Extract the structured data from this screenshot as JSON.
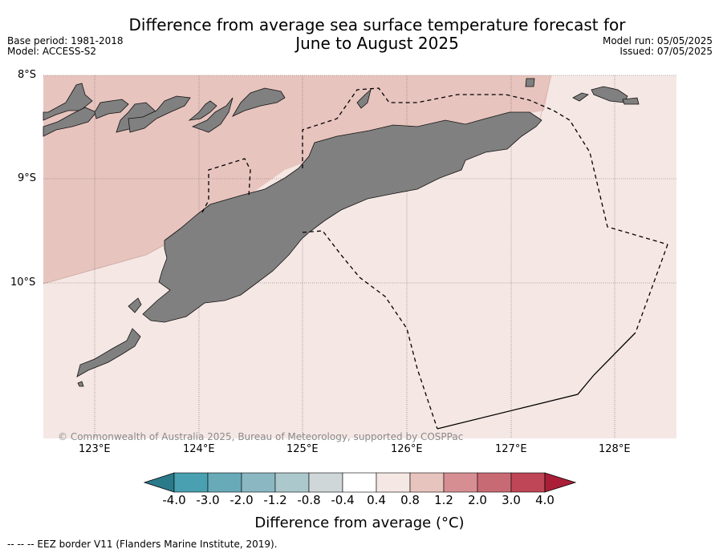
{
  "title_line1": "Difference from average sea surface temperature forecast for",
  "title_line2": "June to August 2025",
  "meta_left": [
    "Base period: 1981-2018",
    "Model: ACCESS-S2"
  ],
  "meta_right": [
    "Model run: 05/05/2025",
    "Issued: 07/05/2025"
  ],
  "copyright": "© Commonwealth of Australia 2025, Bureau of Meteorology, supported by COSPPac",
  "lat_labels": [
    "8°S",
    "9°S",
    "10°S"
  ],
  "lon_labels": [
    "123°E",
    "124°E",
    "125°E",
    "126°E",
    "127°E",
    "128°E"
  ],
  "colorbar": {
    "ticks": [
      "-4.0",
      "-3.0",
      "-2.0",
      "-1.2",
      "-0.8",
      "-0.4",
      "0.4",
      "0.8",
      "1.2",
      "2.0",
      "3.0",
      "4.0"
    ],
    "colors": [
      "#2a7a8a",
      "#48a0b0",
      "#68aab7",
      "#8ab7c2",
      "#abc8cc",
      "#cfd7d8",
      "#ffffff",
      "#f5e7e4",
      "#e8c4be",
      "#d78e93",
      "#c86a74",
      "#bf4657",
      "#ab1e38"
    ],
    "label": "Difference from average (°C)"
  },
  "map_colors": {
    "anomaly_0_4_0_8": "#f5e7e4",
    "anomaly_0_8_1_2": "#e8c4be",
    "land": "#808080"
  },
  "eez_note": "--  --  -- EEZ border V11 (Flanders Marine Institute, 2019)."
}
